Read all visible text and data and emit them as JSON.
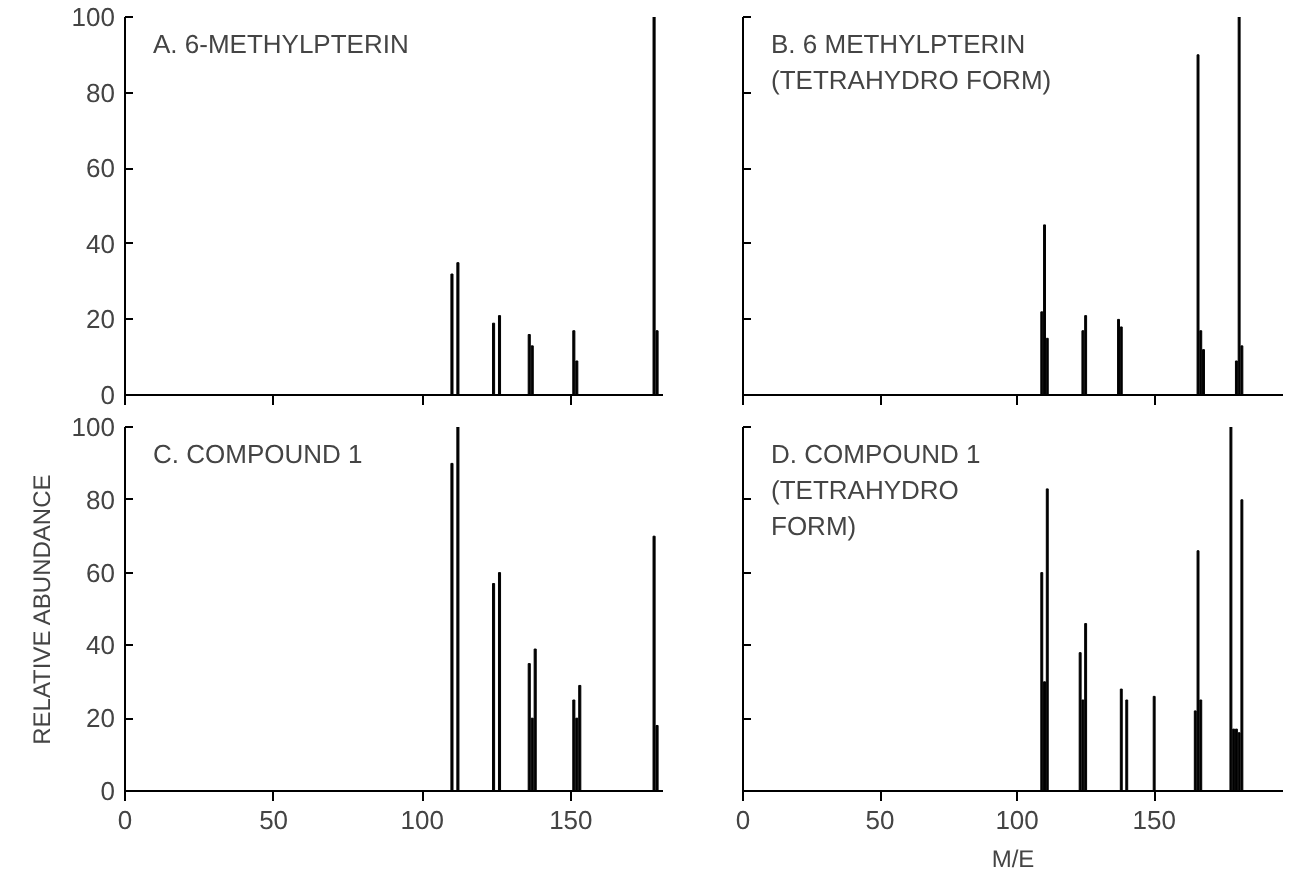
{
  "chart_data": [
    {
      "type": "bar",
      "title": "A. 6-METHYLPTERIN",
      "x": [
        110,
        112,
        124,
        126,
        136,
        137,
        151,
        152,
        178,
        179
      ],
      "values": [
        32,
        35,
        19,
        21,
        16,
        13,
        17,
        9,
        100,
        17
      ],
      "color": "#000000",
      "xlim": [
        0,
        181
      ],
      "ylim": [
        0,
        100
      ],
      "xticks": [
        0,
        50,
        100,
        150
      ],
      "yticks": [
        0,
        20,
        40,
        60,
        80,
        100
      ],
      "tick_labels": "y",
      "grid": false
    },
    {
      "type": "bar",
      "title": "B. 6 METHYLPTERIN\n(TETRAHYDRO FORM)",
      "x": [
        109,
        110,
        111,
        124,
        125,
        137,
        138,
        166,
        167,
        168,
        180,
        181,
        182
      ],
      "values": [
        22,
        45,
        15,
        17,
        21,
        20,
        18,
        90,
        17,
        12,
        9,
        100,
        13
      ],
      "color": "#000000",
      "xlim": [
        0,
        197
      ],
      "ylim": [
        0,
        100
      ],
      "xticks": [
        0,
        50,
        100,
        150
      ],
      "yticks": [
        0,
        20,
        40,
        60,
        80,
        100
      ],
      "tick_labels": false,
      "grid": false
    },
    {
      "type": "bar",
      "title": "C. COMPOUND 1",
      "ylabel": "RELATIVE ABUNDANCE",
      "x": [
        110,
        112,
        124,
        126,
        136,
        137,
        138,
        151,
        152,
        153,
        178,
        179
      ],
      "values": [
        90,
        100,
        57,
        60,
        35,
        20,
        39,
        25,
        20,
        29,
        70,
        18
      ],
      "color": "#000000",
      "xlim": [
        0,
        181
      ],
      "ylim": [
        0,
        100
      ],
      "xticks": [
        0,
        50,
        100,
        150
      ],
      "yticks": [
        0,
        20,
        40,
        60,
        80,
        100
      ],
      "grid": false
    },
    {
      "type": "bar",
      "title": "D. COMPOUND 1\n(TETRAHYDRO\nFORM)",
      "xlabel": "M/E",
      "x": [
        109,
        110,
        111,
        123,
        124,
        125,
        138,
        140,
        150,
        165,
        166,
        167,
        178,
        179,
        180,
        181,
        182
      ],
      "values": [
        60,
        30,
        83,
        38,
        25,
        46,
        28,
        25,
        26,
        22,
        66,
        25,
        100,
        17,
        17,
        16,
        80
      ],
      "color": "#000000",
      "xlim": [
        0,
        197
      ],
      "ylim": [
        0,
        100
      ],
      "xticks": [
        0,
        50,
        100,
        150
      ],
      "yticks": [
        0,
        20,
        40,
        60,
        80,
        100
      ],
      "tick_labels": "x",
      "grid": false
    }
  ]
}
